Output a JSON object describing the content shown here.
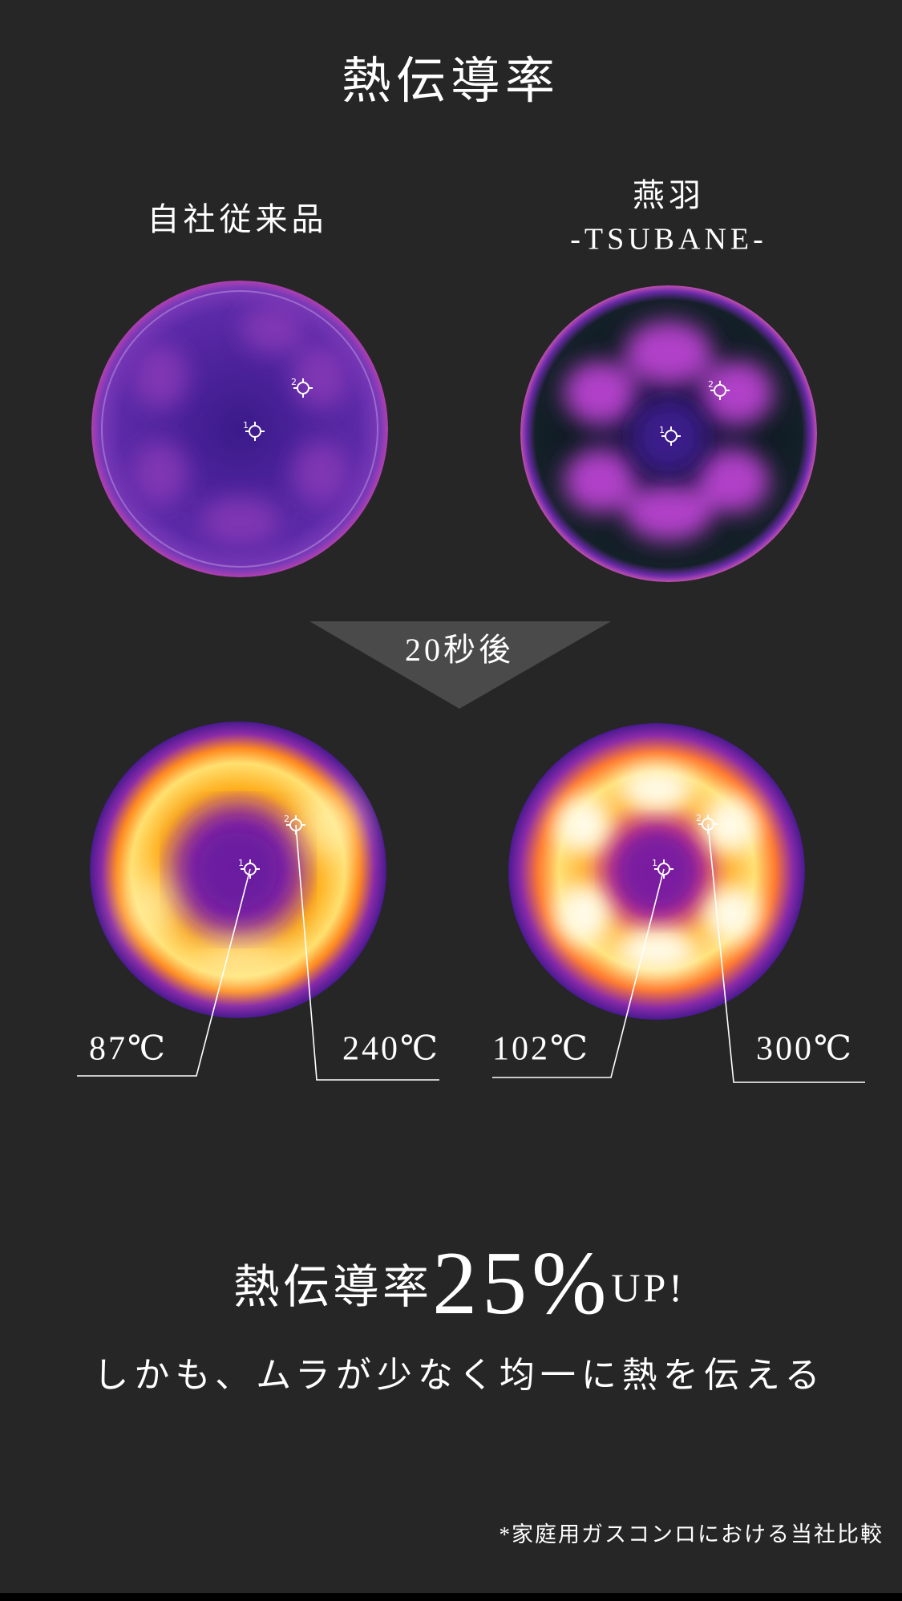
{
  "title": "熱伝導率",
  "products": [
    {
      "name": "自社従来品"
    },
    {
      "name": "燕羽",
      "subname": "-TSUBANE-"
    }
  ],
  "arrow_label": "20秒後",
  "point_labels": [
    "1",
    "2"
  ],
  "temperatures": [
    "87℃",
    "240℃",
    "102℃",
    "300℃"
  ],
  "headline": {
    "prefix": "熱伝導率",
    "figure": "25%",
    "suffix": "UP!"
  },
  "subline": "しかも、ムラが少なく均一に熱を伝える",
  "footnote": "*家庭用ガスコンロにおける当社比較"
}
